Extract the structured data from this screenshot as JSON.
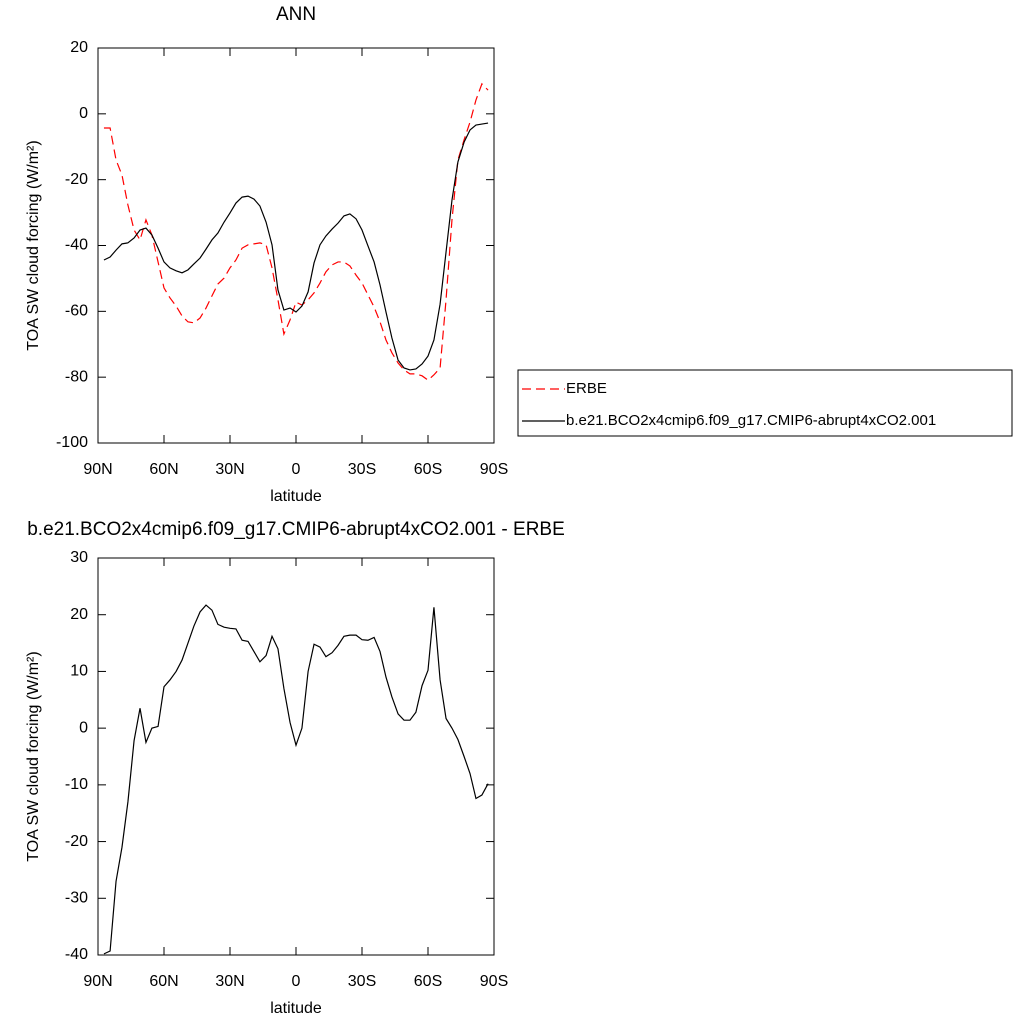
{
  "chart_data": [
    {
      "type": "line",
      "title": "ANN",
      "xlabel": "latitude",
      "ylabel": "TOA SW cloud forcing (W/m²)",
      "x": [
        87.3,
        84.5,
        81.8,
        79.1,
        76.4,
        73.6,
        70.9,
        68.2,
        65.5,
        62.7,
        60.0,
        57.3,
        54.5,
        51.8,
        49.1,
        46.4,
        43.6,
        40.9,
        38.2,
        35.5,
        32.7,
        30.0,
        27.3,
        24.5,
        21.8,
        19.1,
        16.4,
        13.6,
        10.9,
        8.2,
        5.5,
        2.7,
        0.0,
        -2.7,
        -5.5,
        -8.2,
        -10.9,
        -13.6,
        -16.4,
        -19.1,
        -21.8,
        -24.5,
        -27.3,
        -30.0,
        -32.7,
        -35.5,
        -38.2,
        -40.9,
        -43.6,
        -46.4,
        -49.1,
        -51.8,
        -54.5,
        -57.3,
        -60.0,
        -62.7,
        -65.5,
        -68.2,
        -70.9,
        -73.6,
        -76.4,
        -79.1,
        -81.8,
        -84.5,
        -87.3
      ],
      "series": [
        {
          "name": "ERBE",
          "color": "#ff0000",
          "line_style": "dashed",
          "values": [
            -4.3,
            -4.3,
            -14.0,
            -18.6,
            -27.7,
            -35.3,
            -38.3,
            -32.2,
            -36.8,
            -45.0,
            -52.9,
            -55.9,
            -58.4,
            -61.4,
            -63.2,
            -63.5,
            -62.0,
            -59.0,
            -55.3,
            -51.7,
            -49.9,
            -46.8,
            -44.4,
            -40.8,
            -39.8,
            -39.5,
            -39.2,
            -39.8,
            -46.8,
            -56.5,
            -66.9,
            -62.6,
            -57.2,
            -58.1,
            -56.5,
            -54.4,
            -51.4,
            -48.0,
            -45.9,
            -45.0,
            -45.0,
            -46.2,
            -49.0,
            -51.4,
            -55.0,
            -58.7,
            -63.2,
            -68.7,
            -72.6,
            -75.7,
            -77.8,
            -79.0,
            -79.0,
            -79.6,
            -80.9,
            -79.3,
            -77.2,
            -56.5,
            -32.2,
            -14.0,
            -7.9,
            -2.5,
            4.2,
            9.1,
            7.2
          ]
        },
        {
          "name": "b.e21.BCO2x4cmip6.f09_g17.CMIP6-abrupt4xCO2.001",
          "color": "#000000",
          "line_style": "solid",
          "values": [
            -44.4,
            -43.5,
            -41.4,
            -39.5,
            -39.2,
            -37.7,
            -35.3,
            -34.7,
            -36.8,
            -40.8,
            -45.0,
            -46.8,
            -47.7,
            -48.3,
            -47.4,
            -45.6,
            -43.8,
            -41.1,
            -38.3,
            -36.2,
            -32.9,
            -30.1,
            -27.1,
            -25.3,
            -25.0,
            -25.9,
            -28.0,
            -32.9,
            -39.8,
            -53.5,
            -59.6,
            -59.0,
            -60.2,
            -58.4,
            -54.1,
            -45.3,
            -39.8,
            -37.1,
            -35.0,
            -33.2,
            -31.0,
            -30.4,
            -31.9,
            -35.3,
            -40.1,
            -45.0,
            -52.0,
            -60.2,
            -68.1,
            -74.8,
            -77.2,
            -77.8,
            -77.5,
            -76.0,
            -73.6,
            -68.7,
            -57.8,
            -42.0,
            -26.2,
            -14.6,
            -8.6,
            -4.9,
            -3.4,
            -3.1,
            -2.8
          ]
        }
      ],
      "xlim": [
        90,
        -90
      ],
      "xticks": [
        {
          "value": 90,
          "label": "90N"
        },
        {
          "value": 60,
          "label": "60N"
        },
        {
          "value": 30,
          "label": "30N"
        },
        0,
        {
          "value": -30,
          "label": "30S"
        },
        {
          "value": -60,
          "label": "60S"
        },
        {
          "value": -90,
          "label": "90S"
        }
      ],
      "ylim": [
        -100,
        20
      ],
      "yticks": [
        -100,
        -80,
        -60,
        -40,
        -20,
        0,
        20
      ],
      "legend": "right"
    },
    {
      "type": "line",
      "title": "b.e21.BCO2x4cmip6.f09_g17.CMIP6-abrupt4xCO2.001 - ERBE",
      "xlabel": "latitude",
      "ylabel": "TOA SW cloud forcing (W/m²)",
      "x": [
        87.3,
        84.5,
        81.8,
        79.1,
        76.4,
        73.6,
        70.9,
        68.2,
        65.5,
        62.7,
        60.0,
        57.3,
        54.5,
        51.8,
        49.1,
        46.4,
        43.6,
        40.9,
        38.2,
        35.5,
        32.7,
        30.0,
        27.3,
        24.5,
        21.8,
        19.1,
        16.4,
        13.6,
        10.9,
        8.2,
        5.5,
        2.7,
        0.0,
        -2.7,
        -5.5,
        -8.2,
        -10.9,
        -13.6,
        -16.4,
        -19.1,
        -21.8,
        -24.5,
        -27.3,
        -30.0,
        -32.7,
        -35.5,
        -38.2,
        -40.9,
        -43.6,
        -46.4,
        -49.1,
        -51.8,
        -54.5,
        -57.3,
        -60.0,
        -62.7,
        -65.5,
        -68.2,
        -70.9,
        -73.6,
        -76.4,
        -79.1,
        -81.8,
        -84.5,
        -87.3
      ],
      "values": [
        -39.8,
        -39.3,
        -27,
        -21,
        -13,
        -2.2,
        3.5,
        -2.5,
        0,
        0.3,
        7.3,
        8.5,
        10,
        12,
        15,
        18,
        20.5,
        21.7,
        20.8,
        18.3,
        17.8,
        17.6,
        17.5,
        15.5,
        15.3,
        13.5,
        11.7,
        12.8,
        16.2,
        14,
        7,
        1,
        -3,
        0,
        10,
        14.8,
        14.3,
        12.6,
        13.3,
        14.6,
        16.2,
        16.4,
        16.4,
        15.6,
        15.5,
        16,
        13.5,
        9,
        5.5,
        2.5,
        1.4,
        1.4,
        2.8,
        7.5,
        10.2,
        21.3,
        8.5,
        1.7,
        0,
        -2,
        -5,
        -8,
        -12.4,
        -11.8,
        -9.8
      ],
      "color": "#000000",
      "xlim": [
        90,
        -90
      ],
      "xticks": [
        {
          "value": 90,
          "label": "90N"
        },
        {
          "value": 60,
          "label": "60N"
        },
        {
          "value": 30,
          "label": "30N"
        },
        0,
        {
          "value": -30,
          "label": "30S"
        },
        {
          "value": -60,
          "label": "60S"
        },
        {
          "value": -90,
          "label": "90S"
        }
      ],
      "ylim": [
        -40,
        30
      ],
      "yticks": [
        -40,
        -30,
        -20,
        -10,
        0,
        10,
        20,
        30
      ]
    }
  ]
}
